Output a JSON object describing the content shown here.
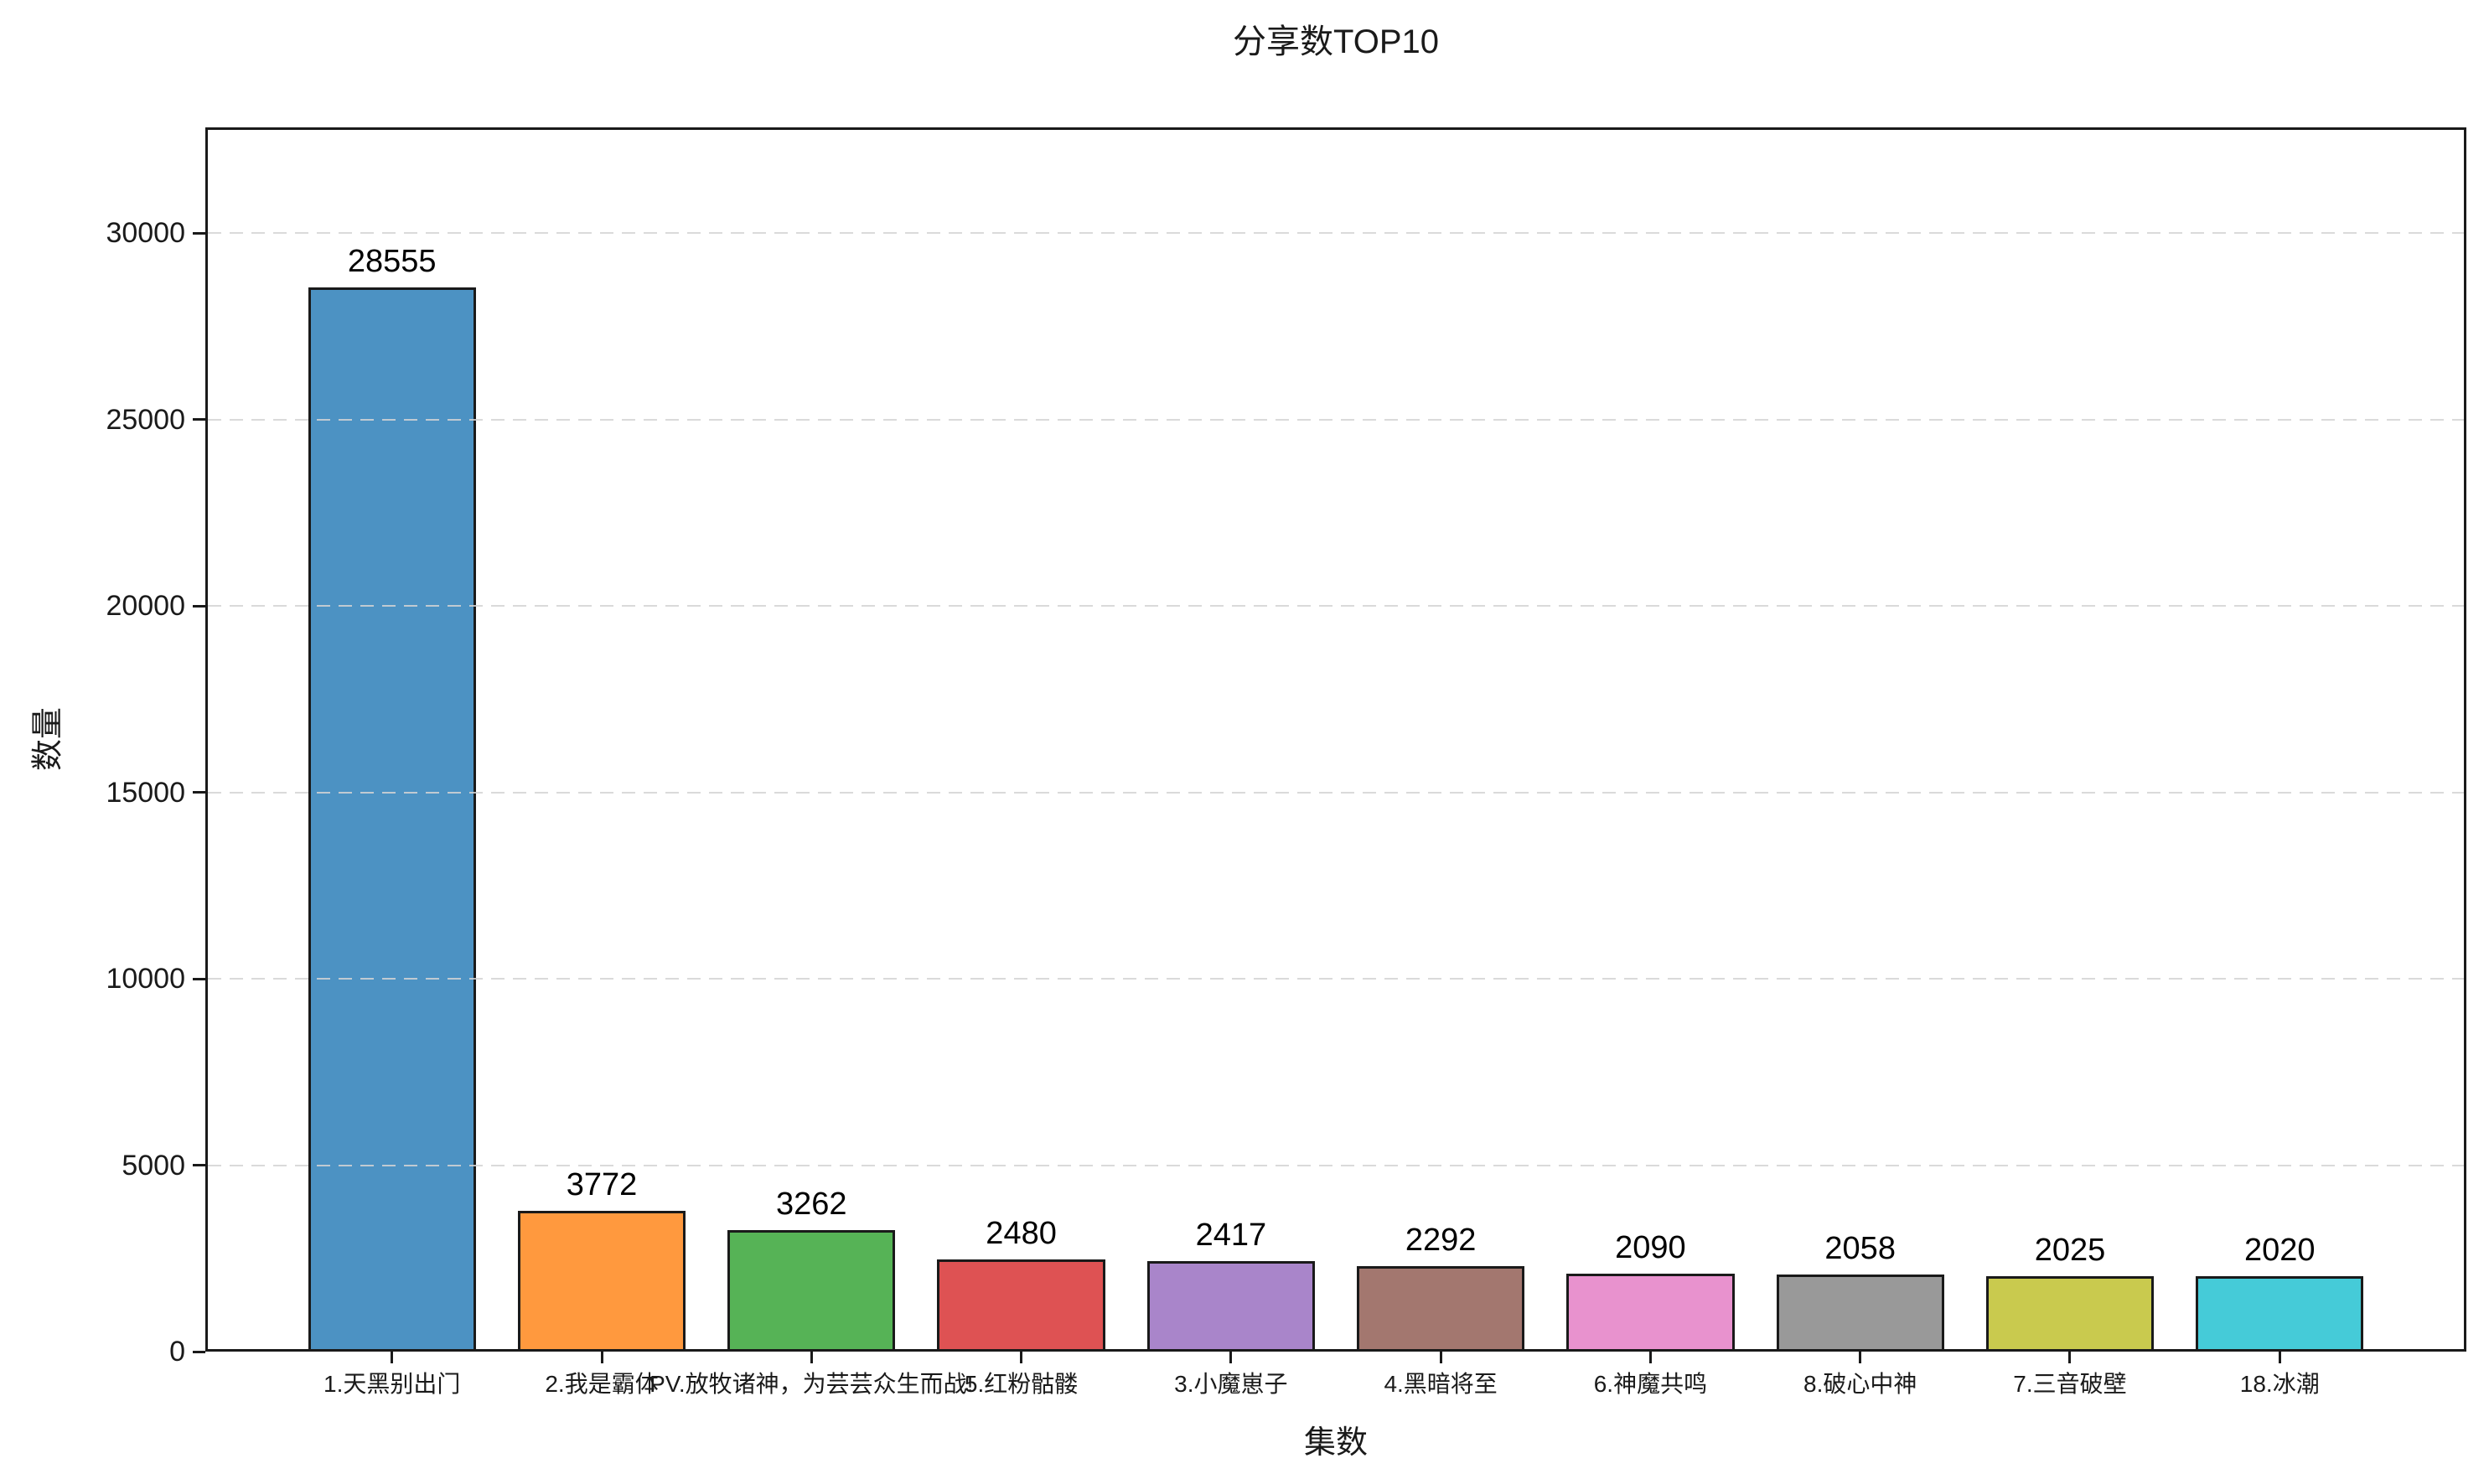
{
  "chart": {
    "title": "分享数TOP10",
    "xlabel": "集数",
    "ylabel": "数量"
  },
  "chart_data": {
    "type": "bar",
    "title": "分享数TOP10",
    "xlabel": "集数",
    "ylabel": "数量",
    "categories": [
      "1.天黑别出门",
      "2.我是霸体",
      "PV.放牧诸神，为芸芸众生而战!",
      "5.红粉骷髅",
      "3.小魔崽子",
      "4.黑暗将至",
      "6.神魔共鸣",
      "8.破心中神",
      "7.三音破壁",
      "18.冰潮"
    ],
    "values": [
      28555,
      3772,
      3262,
      2480,
      2417,
      2292,
      2090,
      2058,
      2025,
      2020
    ],
    "bar_colors": [
      "#4C92C3",
      "#FF993E",
      "#56B356",
      "#DE5253",
      "#A985CA",
      "#A3776F",
      "#E892CE",
      "#999999",
      "#C9CA4E",
      "#45CBD8"
    ],
    "bar_edge_color": "#1a1a1a",
    "bar_width_fraction": 0.8,
    "yticks": [
      0,
      5000,
      10000,
      15000,
      20000,
      25000,
      30000
    ],
    "ylim": [
      0,
      32838
    ],
    "grid": "horizontal-dashed",
    "grid_color": "#d4d4d4",
    "background_color": "#ffffff",
    "spine_color": "#1a1a1a",
    "legend_position": "none"
  }
}
